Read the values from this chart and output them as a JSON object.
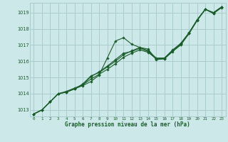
{
  "title": "Graphe pression niveau de la mer (hPa)",
  "bg_color": "#cce8e8",
  "grid_color": "#aacccc",
  "line_color": "#1a5c2a",
  "marker_color": "#1a5c2a",
  "xlim": [
    -0.5,
    23.5
  ],
  "ylim": [
    1012.6,
    1019.6
  ],
  "yticks": [
    1013,
    1014,
    1015,
    1016,
    1017,
    1018,
    1019
  ],
  "xticks": [
    0,
    1,
    2,
    3,
    4,
    5,
    6,
    7,
    8,
    9,
    10,
    11,
    12,
    13,
    14,
    15,
    16,
    17,
    18,
    19,
    20,
    21,
    22,
    23
  ],
  "series": [
    [
      1012.75,
      1013.0,
      1013.5,
      1014.0,
      1014.1,
      1014.3,
      1014.55,
      1014.9,
      1015.2,
      1015.5,
      1015.85,
      1016.25,
      1016.5,
      1016.7,
      1016.55,
      1016.15,
      1016.15,
      1016.65,
      1017.05,
      1017.7,
      1018.55,
      1019.2,
      1018.95,
      1019.35
    ],
    [
      1012.75,
      1013.0,
      1013.5,
      1014.0,
      1014.1,
      1014.3,
      1014.5,
      1014.75,
      1015.15,
      1016.2,
      1017.25,
      1017.45,
      1017.05,
      1016.85,
      1016.75,
      1016.1,
      1016.15,
      1016.6,
      1017.0,
      1017.7,
      1018.5,
      1019.2,
      1018.95,
      1019.3
    ],
    [
      1012.75,
      1013.0,
      1013.5,
      1014.0,
      1014.15,
      1014.35,
      1014.55,
      1015.05,
      1015.35,
      1015.7,
      1016.1,
      1016.5,
      1016.6,
      1016.8,
      1016.6,
      1016.15,
      1016.2,
      1016.65,
      1017.1,
      1017.75,
      1018.55,
      1019.2,
      1019.0,
      1019.35
    ],
    [
      1012.75,
      1013.0,
      1013.5,
      1014.0,
      1014.1,
      1014.3,
      1014.6,
      1015.1,
      1015.3,
      1015.65,
      1016.0,
      1016.4,
      1016.65,
      1016.85,
      1016.65,
      1016.2,
      1016.2,
      1016.7,
      1017.1,
      1017.75,
      1018.55,
      1019.2,
      1019.0,
      1019.35
    ]
  ]
}
